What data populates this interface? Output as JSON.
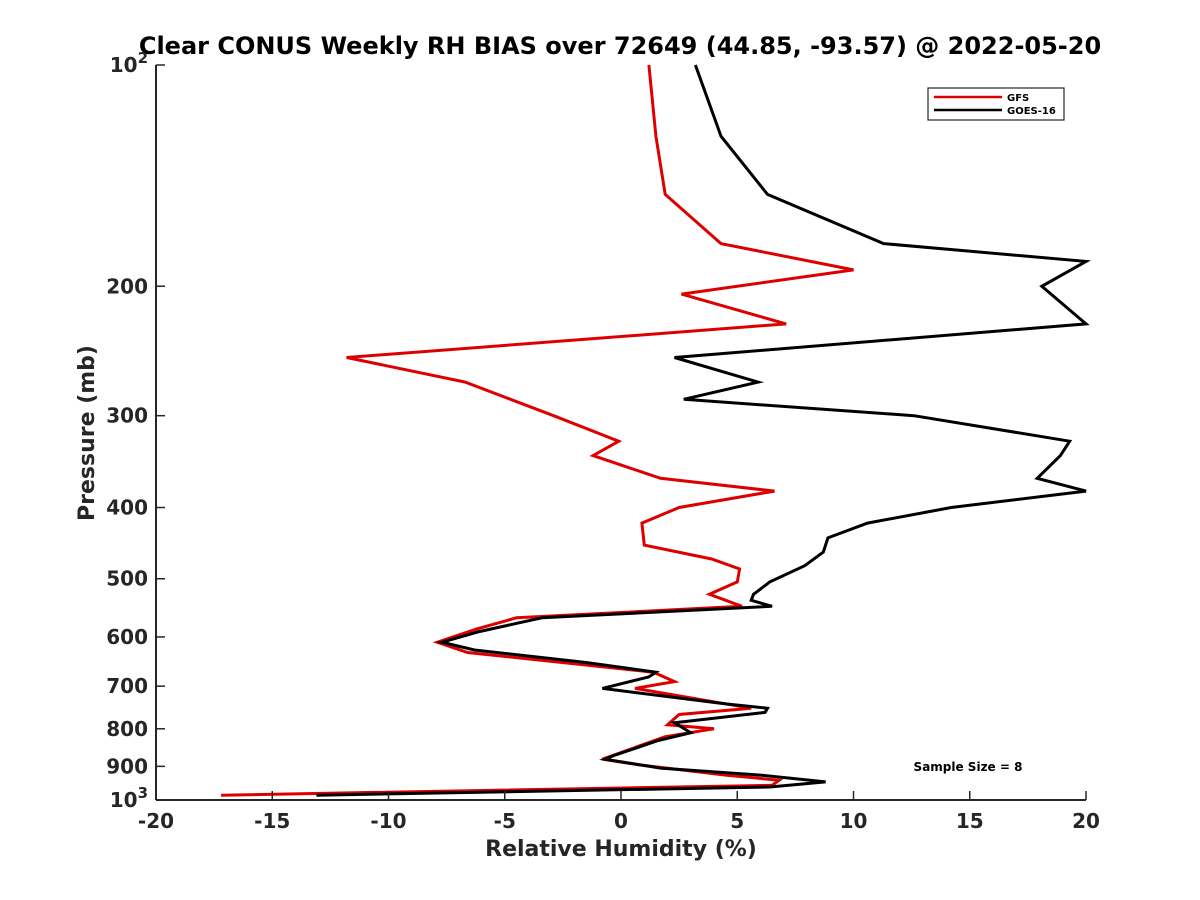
{
  "chart_data": {
    "type": "line",
    "title": "Clear CONUS Weekly RH BIAS over 72649 (44.85, -93.57) @ 2022-05-20",
    "xlabel": "Relative Humidity (%)",
    "ylabel": "Pressure (mb)",
    "xlim": [
      -20,
      20
    ],
    "ylim": [
      1000,
      100
    ],
    "y_scale": "log",
    "y_reversed": true,
    "x_ticks": [
      -20,
      -15,
      -10,
      -5,
      0,
      5,
      10,
      15,
      20
    ],
    "x_tick_labels": [
      "-20",
      "-15",
      "-10",
      "-5",
      "0",
      "5",
      "10",
      "15",
      "20"
    ],
    "y_ticks": [
      100,
      200,
      300,
      400,
      500,
      600,
      700,
      800,
      900,
      1000
    ],
    "y_tick_labels": [
      {
        "base": "10",
        "exp": "2"
      },
      {
        "base": "200",
        "exp": ""
      },
      {
        "base": "300",
        "exp": ""
      },
      {
        "base": "400",
        "exp": ""
      },
      {
        "base": "500",
        "exp": ""
      },
      {
        "base": "600",
        "exp": ""
      },
      {
        "base": "700",
        "exp": ""
      },
      {
        "base": "800",
        "exp": ""
      },
      {
        "base": "900",
        "exp": ""
      },
      {
        "base": "10",
        "exp": "3"
      }
    ],
    "grid": false,
    "legend_position": "top-right",
    "annotation": "Sample Size = 8",
    "series": [
      {
        "name": "GFS",
        "color": "#dd0000",
        "points": [
          [
            1.2,
            100
          ],
          [
            1.5,
            125
          ],
          [
            1.9,
            150
          ],
          [
            4.3,
            175
          ],
          [
            10.0,
            190
          ],
          [
            2.6,
            205
          ],
          [
            7.1,
            225
          ],
          [
            -11.8,
            250
          ],
          [
            -6.7,
            270
          ],
          [
            -2.9,
            300
          ],
          [
            -0.1,
            325
          ],
          [
            -1.2,
            340
          ],
          [
            1.7,
            365
          ],
          [
            6.6,
            380
          ],
          [
            2.5,
            400
          ],
          [
            0.9,
            420
          ],
          [
            1.0,
            450
          ],
          [
            3.9,
            470
          ],
          [
            5.1,
            485
          ],
          [
            5.0,
            505
          ],
          [
            3.8,
            525
          ],
          [
            5.2,
            545
          ],
          [
            -4.5,
            565
          ],
          [
            -6.2,
            585
          ],
          [
            -7.9,
            610
          ],
          [
            -6.6,
            630
          ],
          [
            1.4,
            670
          ],
          [
            2.3,
            690
          ],
          [
            0.6,
            705
          ],
          [
            5.6,
            750
          ],
          [
            2.5,
            765
          ],
          [
            2.0,
            790
          ],
          [
            4.0,
            800
          ],
          [
            1.9,
            820
          ],
          [
            -0.8,
            880
          ],
          [
            0.7,
            895
          ],
          [
            4.5,
            925
          ],
          [
            6.8,
            940
          ],
          [
            6.5,
            955
          ],
          [
            -17.2,
            985
          ]
        ]
      },
      {
        "name": "GOES-16",
        "color": "#000000",
        "points": [
          [
            3.2,
            100
          ],
          [
            4.3,
            125
          ],
          [
            6.3,
            150
          ],
          [
            11.3,
            175
          ],
          [
            20.0,
            185
          ],
          [
            18.1,
            200
          ],
          [
            20.0,
            225
          ],
          [
            2.3,
            250
          ],
          [
            5.9,
            270
          ],
          [
            2.7,
            285
          ],
          [
            12.6,
            300
          ],
          [
            19.3,
            325
          ],
          [
            18.9,
            340
          ],
          [
            17.9,
            365
          ],
          [
            20.0,
            380
          ],
          [
            14.2,
            400
          ],
          [
            10.6,
            420
          ],
          [
            8.9,
            440
          ],
          [
            8.7,
            460
          ],
          [
            7.9,
            480
          ],
          [
            6.4,
            505
          ],
          [
            5.7,
            525
          ],
          [
            5.6,
            535
          ],
          [
            6.5,
            545
          ],
          [
            -3.4,
            565
          ],
          [
            -6.1,
            590
          ],
          [
            -7.7,
            610
          ],
          [
            -6.3,
            625
          ],
          [
            -1.5,
            650
          ],
          [
            1.5,
            670
          ],
          [
            1.2,
            680
          ],
          [
            -0.8,
            705
          ],
          [
            4.5,
            740
          ],
          [
            6.3,
            750
          ],
          [
            6.2,
            760
          ],
          [
            2.3,
            785
          ],
          [
            3.0,
            810
          ],
          [
            1.6,
            830
          ],
          [
            -0.3,
            870
          ],
          [
            -0.7,
            880
          ],
          [
            1.7,
            905
          ],
          [
            6.0,
            925
          ],
          [
            8.8,
            945
          ],
          [
            6.4,
            960
          ],
          [
            -13.1,
            985
          ]
        ]
      }
    ]
  }
}
